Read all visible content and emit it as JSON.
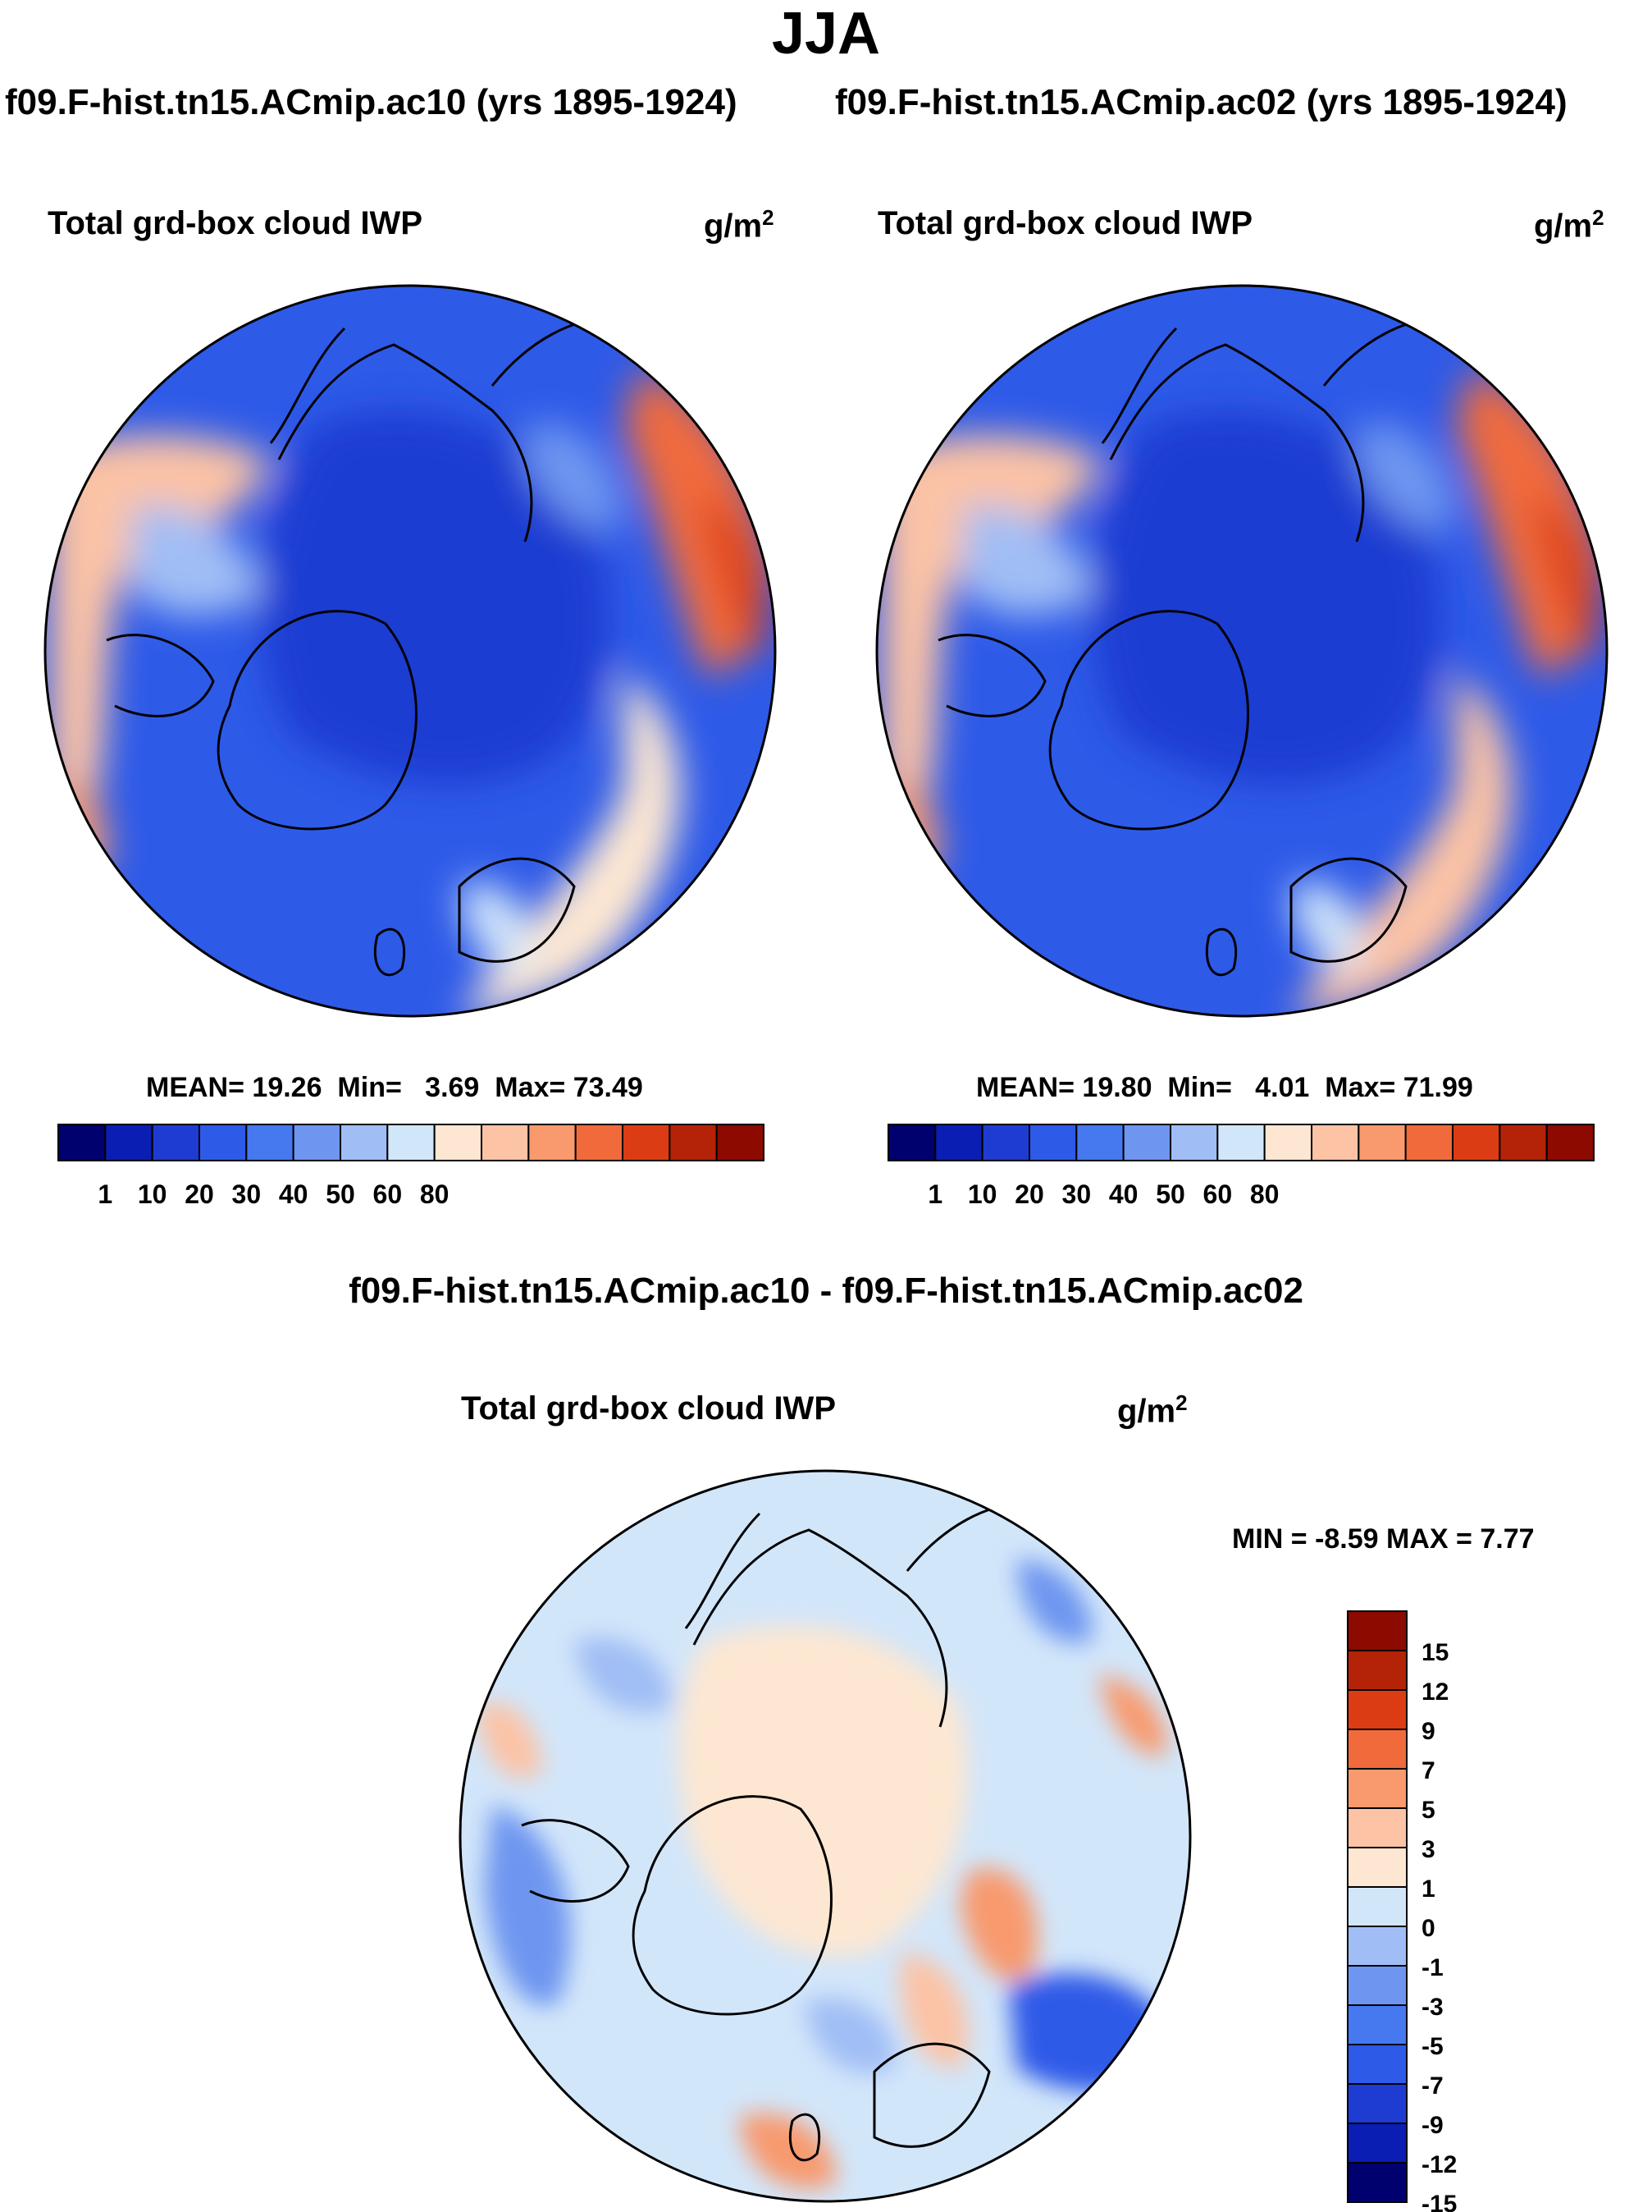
{
  "figure": {
    "season": "JJA"
  },
  "panels": [
    {
      "case_title": "f09.F-hist.tn15.ACmip.ac10 (yrs 1895-1924)",
      "variable": "Total grd-box cloud IWP",
      "units_base": "g/m",
      "units_exp": "2",
      "stats": {
        "mean_label": "MEAN=",
        "mean": "19.26",
        "min_label": "Min=",
        "min": "3.69",
        "max_label": "Max=",
        "max": "73.49"
      },
      "field_blobs": [
        {
          "name": "pacific-west",
          "level": 9
        },
        {
          "name": "pacific-east-high",
          "level": 12
        },
        {
          "name": "atlantic-band",
          "level": 8
        },
        {
          "name": "arctic-core",
          "level": 2
        }
      ]
    },
    {
      "case_title": "f09.F-hist.tn15.ACmip.ac02 (yrs 1895-1924)",
      "variable": "Total grd-box cloud IWP",
      "units_base": "g/m",
      "units_exp": "2",
      "stats": {
        "mean_label": "MEAN=",
        "mean": "19.80",
        "min_label": "Min=",
        "min": "4.01",
        "max_label": "Max=",
        "max": "71.99"
      },
      "field_blobs": [
        {
          "name": "pacific-west",
          "level": 9
        },
        {
          "name": "pacific-east-high",
          "level": 12
        },
        {
          "name": "atlantic-band",
          "level": 8
        },
        {
          "name": "arctic-core",
          "level": 2
        }
      ]
    },
    {
      "case_title": "f09.F-hist.tn15.ACmip.ac10 - f09.F-hist.tn15.ACmip.ac02",
      "variable": "Total grd-box cloud IWP",
      "units_base": "g/m",
      "units_exp": "2",
      "stats": {
        "min_label": "MIN =",
        "min": "-8.59",
        "max_label": "MAX =",
        "max": "7.77"
      }
    }
  ],
  "colorbars": {
    "absolute": {
      "labels": [
        "1",
        "10",
        "20",
        "30",
        "40",
        "50",
        "60",
        "80"
      ],
      "colors": [
        "#00006e",
        "#0a1eb4",
        "#1e3cd2",
        "#2e5ae8",
        "#4678f0",
        "#6e96f0",
        "#a0bef5",
        "#d2e6fa",
        "#fde7d2",
        "#fcc3a5",
        "#f89a6e",
        "#f06a3c",
        "#dc3c14",
        "#b42308",
        "#8c0a00"
      ]
    },
    "difference": {
      "labels": [
        "15",
        "12",
        "9",
        "7",
        "5",
        "3",
        "1",
        "0",
        "-1",
        "-3",
        "-5",
        "-7",
        "-9",
        "-12",
        "-15"
      ],
      "colors": [
        "#8c0a00",
        "#b42308",
        "#dc3c14",
        "#f06a3c",
        "#f89a6e",
        "#fcc3a5",
        "#fde7d2",
        "#d2e6fa",
        "#a0bef5",
        "#6e96f0",
        "#4678f0",
        "#2e5ae8",
        "#1e3cd2",
        "#0a1eb4",
        "#00006e"
      ]
    }
  }
}
